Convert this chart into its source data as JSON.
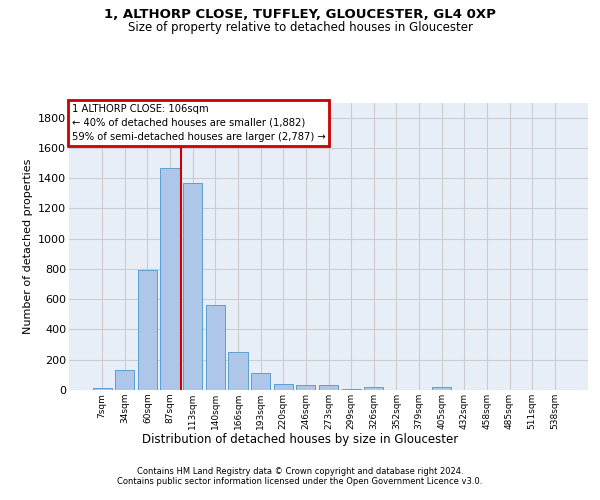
{
  "title1": "1, ALTHORP CLOSE, TUFFLEY, GLOUCESTER, GL4 0XP",
  "title2": "Size of property relative to detached houses in Gloucester",
  "xlabel": "Distribution of detached houses by size in Gloucester",
  "ylabel": "Number of detached properties",
  "footer1": "Contains HM Land Registry data © Crown copyright and database right 2024.",
  "footer2": "Contains public sector information licensed under the Open Government Licence v3.0.",
  "bar_labels": [
    "7sqm",
    "34sqm",
    "60sqm",
    "87sqm",
    "113sqm",
    "140sqm",
    "166sqm",
    "193sqm",
    "220sqm",
    "246sqm",
    "273sqm",
    "299sqm",
    "326sqm",
    "352sqm",
    "379sqm",
    "405sqm",
    "432sqm",
    "458sqm",
    "485sqm",
    "511sqm",
    "538sqm"
  ],
  "bar_values": [
    15,
    130,
    795,
    1470,
    1365,
    560,
    248,
    110,
    38,
    30,
    30,
    5,
    18,
    0,
    0,
    20,
    0,
    0,
    0,
    0,
    0
  ],
  "bar_color": "#aec6e8",
  "bar_edge_color": "#5a9fd4",
  "vline_color": "#cc0000",
  "annotation_text": "1 ALTHORP CLOSE: 106sqm\n← 40% of detached houses are smaller (1,882)\n59% of semi-detached houses are larger (2,787) →",
  "annotation_box_color": "#cc0000",
  "ylim": [
    0,
    1900
  ],
  "yticks": [
    0,
    200,
    400,
    600,
    800,
    1000,
    1200,
    1400,
    1600,
    1800
  ],
  "grid_color": "#cccccc",
  "bg_color": "#e8eef8"
}
